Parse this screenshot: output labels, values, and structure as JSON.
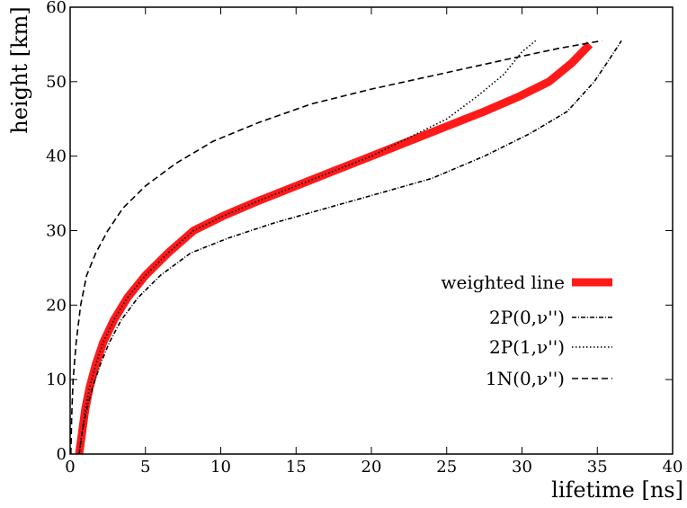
{
  "chart_data": {
    "type": "line",
    "title": "",
    "xlabel": "lifetime [ns]",
    "ylabel": "height [km]",
    "xlim": [
      0,
      40
    ],
    "ylim": [
      0,
      60
    ],
    "xticks": [
      0,
      5,
      10,
      15,
      20,
      25,
      30,
      35,
      40
    ],
    "yticks": [
      0,
      10,
      20,
      30,
      40,
      50,
      60
    ],
    "grid": false,
    "legend_position": "lower-right",
    "series": [
      {
        "name": "weighted line",
        "color": "#ff1a1a",
        "style": "solid-thick",
        "x": [
          0.6,
          0.8,
          1.0,
          1.3,
          1.7,
          2.2,
          2.9,
          3.8,
          5.0,
          6.5,
          8.2,
          10.2,
          12.5,
          15.0,
          17.5,
          20.0,
          22.5,
          25.0,
          27.5,
          29.8,
          31.8,
          33.3,
          34.5
        ],
        "y": [
          0,
          3,
          6,
          9,
          12,
          15,
          18,
          21,
          24,
          27,
          30,
          32,
          34,
          36,
          38,
          40,
          42,
          44,
          46,
          48,
          50,
          52.5,
          55
        ]
      },
      {
        "name": "2P(0,ν'')",
        "color": "#000000",
        "style": "dash-dot",
        "x": [
          0.6,
          0.8,
          1.1,
          1.5,
          2.0,
          2.6,
          3.4,
          4.5,
          6.0,
          8.0,
          10.5,
          13.5,
          17.0,
          20.5,
          24.0,
          27.5,
          30.5,
          33.0,
          34.8,
          35.8,
          36.6
        ],
        "y": [
          0,
          3,
          6,
          9,
          12,
          15,
          18,
          21,
          24,
          27,
          29,
          31,
          33,
          35,
          37,
          40,
          43,
          46,
          50,
          53,
          55.5
        ]
      },
      {
        "name": "2P(1,ν'')",
        "color": "#000000",
        "style": "dotted",
        "x": [
          0.6,
          0.8,
          1.0,
          1.3,
          1.7,
          2.2,
          2.9,
          3.8,
          5.0,
          6.5,
          8.2,
          10.2,
          12.5,
          15.0,
          17.5,
          20.0,
          22.5,
          25.0,
          27.0,
          28.8,
          30.0,
          30.9
        ],
        "y": [
          0,
          3,
          6,
          9,
          12,
          15,
          18,
          21,
          24,
          27,
          30,
          32,
          34,
          36,
          38,
          40,
          42.5,
          45,
          48,
          51,
          54,
          55.5
        ]
      },
      {
        "name": "1N(0,ν'')",
        "color": "#000000",
        "style": "dashed",
        "x": [
          0.05,
          0.1,
          0.2,
          0.4,
          0.7,
          1.1,
          1.7,
          2.5,
          3.5,
          5.0,
          7.0,
          9.5,
          12.5,
          16.0,
          20.0,
          24.5,
          29.0,
          32.5,
          35.3
        ],
        "y": [
          0,
          5,
          10,
          15,
          20,
          24,
          27,
          30,
          33,
          36,
          39,
          42,
          44.5,
          47,
          49,
          51,
          53,
          54.5,
          55.5
        ]
      }
    ]
  }
}
